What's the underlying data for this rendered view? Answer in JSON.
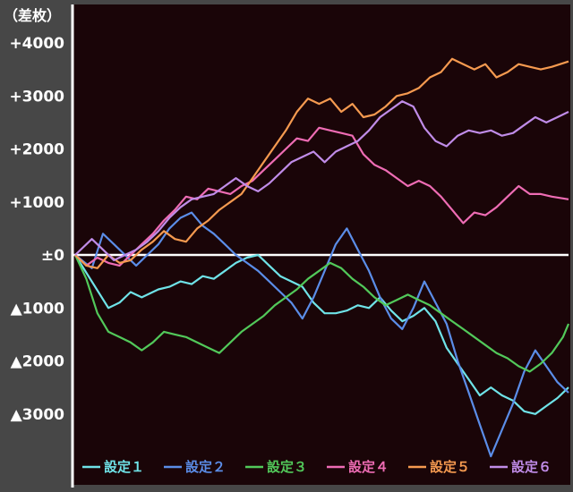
{
  "chart_data": {
    "type": "line",
    "ylabel": "（差枚）",
    "ylim": [
      -4000,
      4300
    ],
    "yticks": [
      {
        "value": 4000,
        "label": "+4000"
      },
      {
        "value": 3000,
        "label": "+3000"
      },
      {
        "value": 2000,
        "label": "+2000"
      },
      {
        "value": 1000,
        "label": "+1000"
      },
      {
        "value": 0,
        "label": "±0"
      },
      {
        "value": -1000,
        "label": "▲1000"
      },
      {
        "value": -2000,
        "label": "▲2000"
      },
      {
        "value": -3000,
        "label": "▲3000"
      }
    ],
    "zero_line": true,
    "grid": false,
    "legend_position": "bottom",
    "series": [
      {
        "name": "設定１",
        "color": "#6fe3e8",
        "values": [
          [
            0,
            0
          ],
          [
            30,
            -1000
          ],
          [
            40,
            -900
          ],
          [
            50,
            -700
          ],
          [
            60,
            -800
          ],
          [
            75,
            -650
          ],
          [
            85,
            -600
          ],
          [
            95,
            -500
          ],
          [
            105,
            -550
          ],
          [
            115,
            -400
          ],
          [
            125,
            -450
          ],
          [
            135,
            -300
          ],
          [
            145,
            -150
          ],
          [
            155,
            -50
          ],
          [
            165,
            0
          ],
          [
            175,
            -200
          ],
          [
            185,
            -400
          ],
          [
            195,
            -500
          ],
          [
            205,
            -600
          ],
          [
            215,
            -900
          ],
          [
            225,
            -1100
          ],
          [
            235,
            -1100
          ],
          [
            245,
            -1050
          ],
          [
            255,
            -950
          ],
          [
            265,
            -1000
          ],
          [
            275,
            -800
          ],
          [
            285,
            -1050
          ],
          [
            295,
            -1250
          ],
          [
            305,
            -1150
          ],
          [
            315,
            -1000
          ],
          [
            325,
            -1250
          ],
          [
            335,
            -1750
          ],
          [
            345,
            -2050
          ],
          [
            355,
            -2350
          ],
          [
            365,
            -2650
          ],
          [
            375,
            -2500
          ],
          [
            385,
            -2650
          ],
          [
            395,
            -2750
          ],
          [
            405,
            -2950
          ],
          [
            415,
            -3000
          ],
          [
            425,
            -2850
          ],
          [
            435,
            -2700
          ],
          [
            445,
            -2500
          ]
        ]
      },
      {
        "name": "設定２",
        "color": "#5b8de8",
        "values": [
          [
            0,
            0
          ],
          [
            15,
            -250
          ],
          [
            25,
            400
          ],
          [
            35,
            200
          ],
          [
            45,
            0
          ],
          [
            55,
            -200
          ],
          [
            65,
            0
          ],
          [
            75,
            200
          ],
          [
            85,
            500
          ],
          [
            95,
            700
          ],
          [
            105,
            800
          ],
          [
            115,
            550
          ],
          [
            125,
            400
          ],
          [
            135,
            200
          ],
          [
            145,
            0
          ],
          [
            155,
            -150
          ],
          [
            165,
            -300
          ],
          [
            175,
            -500
          ],
          [
            185,
            -700
          ],
          [
            195,
            -900
          ],
          [
            205,
            -1200
          ],
          [
            215,
            -800
          ],
          [
            225,
            -300
          ],
          [
            235,
            200
          ],
          [
            245,
            500
          ],
          [
            255,
            100
          ],
          [
            265,
            -300
          ],
          [
            275,
            -800
          ],
          [
            285,
            -1200
          ],
          [
            295,
            -1400
          ],
          [
            305,
            -1000
          ],
          [
            315,
            -500
          ],
          [
            325,
            -900
          ],
          [
            335,
            -1300
          ],
          [
            345,
            -2000
          ],
          [
            355,
            -2600
          ],
          [
            365,
            -3200
          ],
          [
            375,
            -3800
          ],
          [
            385,
            -3300
          ],
          [
            395,
            -2800
          ],
          [
            405,
            -2200
          ],
          [
            415,
            -1800
          ],
          [
            425,
            -2100
          ],
          [
            435,
            -2400
          ],
          [
            445,
            -2600
          ]
        ]
      },
      {
        "name": "設定３",
        "color": "#52c95a",
        "values": [
          [
            0,
            0
          ],
          [
            10,
            -450
          ],
          [
            20,
            -1100
          ],
          [
            30,
            -1450
          ],
          [
            40,
            -1550
          ],
          [
            50,
            -1650
          ],
          [
            60,
            -1800
          ],
          [
            70,
            -1650
          ],
          [
            80,
            -1450
          ],
          [
            90,
            -1500
          ],
          [
            100,
            -1550
          ],
          [
            110,
            -1650
          ],
          [
            120,
            -1750
          ],
          [
            130,
            -1850
          ],
          [
            140,
            -1650
          ],
          [
            150,
            -1450
          ],
          [
            160,
            -1300
          ],
          [
            170,
            -1150
          ],
          [
            180,
            -950
          ],
          [
            190,
            -800
          ],
          [
            200,
            -650
          ],
          [
            210,
            -450
          ],
          [
            220,
            -300
          ],
          [
            230,
            -150
          ],
          [
            240,
            -250
          ],
          [
            250,
            -450
          ],
          [
            260,
            -600
          ],
          [
            270,
            -800
          ],
          [
            280,
            -950
          ],
          [
            290,
            -850
          ],
          [
            300,
            -750
          ],
          [
            310,
            -850
          ],
          [
            320,
            -950
          ],
          [
            330,
            -1100
          ],
          [
            340,
            -1250
          ],
          [
            350,
            -1400
          ],
          [
            360,
            -1550
          ],
          [
            370,
            -1700
          ],
          [
            380,
            -1850
          ],
          [
            390,
            -1950
          ],
          [
            400,
            -2100
          ],
          [
            410,
            -2200
          ],
          [
            420,
            -2050
          ],
          [
            430,
            -1850
          ],
          [
            440,
            -1550
          ],
          [
            445,
            -1300
          ]
        ]
      },
      {
        "name": "設定４",
        "color": "#ee6cb4",
        "values": [
          [
            0,
            0
          ],
          [
            10,
            -200
          ],
          [
            20,
            -50
          ],
          [
            30,
            -150
          ],
          [
            40,
            -200
          ],
          [
            50,
            0
          ],
          [
            60,
            200
          ],
          [
            70,
            400
          ],
          [
            80,
            650
          ],
          [
            90,
            850
          ],
          [
            100,
            1100
          ],
          [
            110,
            1050
          ],
          [
            120,
            1250
          ],
          [
            130,
            1200
          ],
          [
            140,
            1150
          ],
          [
            150,
            1300
          ],
          [
            160,
            1400
          ],
          [
            170,
            1600
          ],
          [
            180,
            1800
          ],
          [
            190,
            2000
          ],
          [
            200,
            2200
          ],
          [
            210,
            2150
          ],
          [
            220,
            2400
          ],
          [
            230,
            2350
          ],
          [
            240,
            2300
          ],
          [
            250,
            2250
          ],
          [
            260,
            1900
          ],
          [
            270,
            1700
          ],
          [
            280,
            1600
          ],
          [
            290,
            1450
          ],
          [
            300,
            1300
          ],
          [
            310,
            1400
          ],
          [
            320,
            1300
          ],
          [
            330,
            1100
          ],
          [
            340,
            850
          ],
          [
            350,
            600
          ],
          [
            360,
            800
          ],
          [
            370,
            750
          ],
          [
            380,
            900
          ],
          [
            390,
            1100
          ],
          [
            400,
            1300
          ],
          [
            410,
            1150
          ],
          [
            420,
            1150
          ],
          [
            430,
            1100
          ],
          [
            445,
            1050
          ]
        ]
      },
      {
        "name": "設定５",
        "color": "#f59a50",
        "values": [
          [
            0,
            0
          ],
          [
            10,
            -200
          ],
          [
            20,
            -250
          ],
          [
            30,
            0
          ],
          [
            40,
            -150
          ],
          [
            50,
            -100
          ],
          [
            60,
            100
          ],
          [
            70,
            250
          ],
          [
            80,
            450
          ],
          [
            90,
            300
          ],
          [
            100,
            250
          ],
          [
            110,
            500
          ],
          [
            120,
            650
          ],
          [
            130,
            850
          ],
          [
            140,
            1000
          ],
          [
            150,
            1150
          ],
          [
            160,
            1450
          ],
          [
            170,
            1750
          ],
          [
            180,
            2050
          ],
          [
            190,
            2350
          ],
          [
            200,
            2700
          ],
          [
            210,
            2950
          ],
          [
            220,
            2850
          ],
          [
            230,
            2950
          ],
          [
            240,
            2700
          ],
          [
            250,
            2850
          ],
          [
            260,
            2600
          ],
          [
            270,
            2650
          ],
          [
            280,
            2800
          ],
          [
            290,
            3000
          ],
          [
            300,
            3050
          ],
          [
            310,
            3150
          ],
          [
            320,
            3350
          ],
          [
            330,
            3450
          ],
          [
            340,
            3700
          ],
          [
            350,
            3600
          ],
          [
            360,
            3500
          ],
          [
            370,
            3600
          ],
          [
            380,
            3350
          ],
          [
            390,
            3450
          ],
          [
            400,
            3600
          ],
          [
            410,
            3550
          ],
          [
            420,
            3500
          ],
          [
            430,
            3550
          ],
          [
            445,
            3650
          ]
        ]
      },
      {
        "name": "設定６",
        "color": "#c08ce8",
        "values": [
          [
            0,
            0
          ],
          [
            15,
            300
          ],
          [
            25,
            100
          ],
          [
            35,
            -100
          ],
          [
            45,
            0
          ],
          [
            55,
            100
          ],
          [
            65,
            250
          ],
          [
            75,
            450
          ],
          [
            85,
            700
          ],
          [
            95,
            900
          ],
          [
            105,
            1050
          ],
          [
            115,
            1100
          ],
          [
            125,
            1150
          ],
          [
            135,
            1300
          ],
          [
            145,
            1450
          ],
          [
            155,
            1300
          ],
          [
            165,
            1200
          ],
          [
            175,
            1350
          ],
          [
            185,
            1550
          ],
          [
            195,
            1750
          ],
          [
            205,
            1850
          ],
          [
            215,
            1950
          ],
          [
            225,
            1750
          ],
          [
            235,
            1950
          ],
          [
            245,
            2050
          ],
          [
            255,
            2150
          ],
          [
            265,
            2350
          ],
          [
            275,
            2600
          ],
          [
            285,
            2750
          ],
          [
            295,
            2900
          ],
          [
            305,
            2800
          ],
          [
            315,
            2400
          ],
          [
            325,
            2150
          ],
          [
            335,
            2050
          ],
          [
            345,
            2250
          ],
          [
            355,
            2350
          ],
          [
            365,
            2300
          ],
          [
            375,
            2350
          ],
          [
            385,
            2250
          ],
          [
            395,
            2300
          ],
          [
            405,
            2450
          ],
          [
            415,
            2600
          ],
          [
            425,
            2500
          ],
          [
            435,
            2600
          ],
          [
            445,
            2700
          ]
        ]
      }
    ]
  }
}
